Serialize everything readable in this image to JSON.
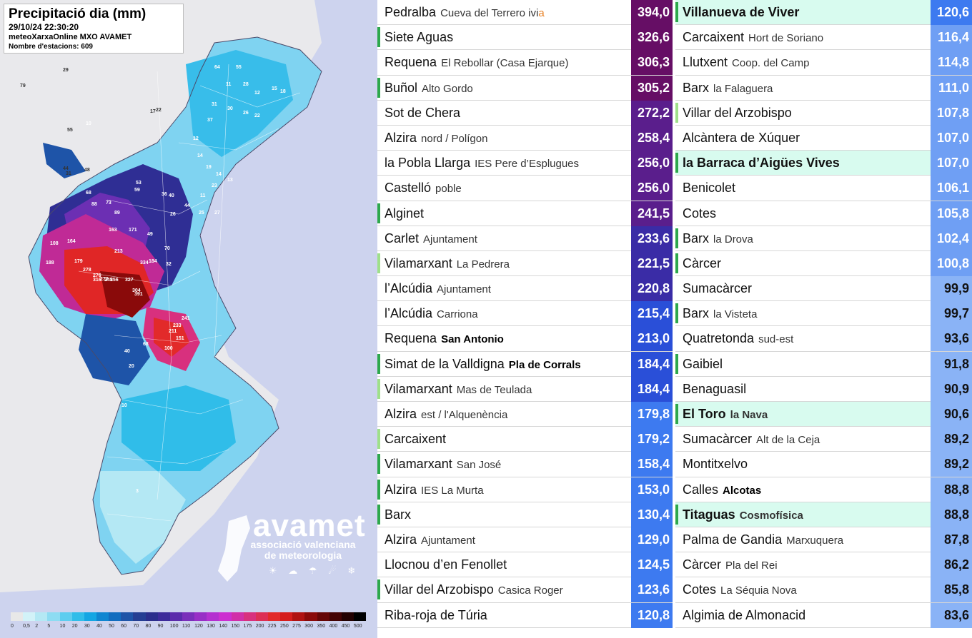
{
  "map": {
    "title": "Precipitació dia (mm)",
    "datetime": "29/10/24 22:30:20",
    "source": "meteoXarxaOnline MXO AVAMET",
    "station_count": "Nombre d'estacions: 609",
    "logo_name": "avamet",
    "logo_sub_1": "associació valenciana",
    "logo_sub_2": "de meteorologia",
    "weather_icons": "☀ ☁ ☂ ☄ ❄",
    "labels_a": [
      "29",
      "79",
      "55",
      "44",
      "31",
      "48",
      "17",
      "22",
      "10",
      "68",
      "88",
      "73",
      "89",
      "163",
      "171",
      "108",
      "164",
      "188",
      "179",
      "278",
      "213",
      "272",
      "327",
      "304",
      "391",
      "276",
      "316",
      "245",
      "256",
      "334",
      "184",
      "241",
      "233",
      "211",
      "151",
      "100",
      "68",
      "40",
      "20",
      "10",
      "3"
    ],
    "labels_b": [
      "53",
      "59",
      "36",
      "40",
      "49",
      "26",
      "70",
      "32",
      "64",
      "55",
      "11",
      "28",
      "12",
      "15",
      "18",
      "26",
      "22",
      "30",
      "31",
      "37",
      "12",
      "14",
      "19",
      "14",
      "13",
      "23",
      "11",
      "44",
      "25",
      "27"
    ],
    "legend_colors": [
      "#e8e8e8",
      "#d2f2f8",
      "#b4e8f4",
      "#8ddcf2",
      "#5dcdef",
      "#30bde9",
      "#14a6e3",
      "#0f86d1",
      "#116dbf",
      "#1e54a8",
      "#253e93",
      "#2b2e8c",
      "#3d2b9a",
      "#5b2bab",
      "#7a2fba",
      "#982fc6",
      "#b430d0",
      "#cc2fd0",
      "#d12fa8",
      "#d8307e",
      "#dd2f55",
      "#e22a2a",
      "#d51d1d",
      "#b01212",
      "#8a0a0a",
      "#650606",
      "#430303",
      "#220101",
      "#000000"
    ],
    "legend_ticks": [
      "0",
      "0,5",
      "2",
      "5",
      "10",
      "20",
      "30",
      "40",
      "50",
      "60",
      "70",
      "80",
      "90",
      "100",
      "110",
      "120",
      "130",
      "140",
      "150",
      "175",
      "200",
      "225",
      "250",
      "275",
      "300",
      "350",
      "400",
      "450",
      "500"
    ]
  },
  "colors": {
    "dark_purple": "#660e65",
    "purple": "#5a1e8c",
    "indigo": "#3a2ca6",
    "blue": "#2a4fd8",
    "mid_blue": "#3d7af0",
    "light_blue": "#6f9ff4",
    "green_mark": "#2da84c",
    "light_green_mark": "#9fe08a",
    "highlight_row": "#d8fbef",
    "orange_text": "#e8842a"
  },
  "stations_left": [
    {
      "name": "Pedralba",
      "loc": "Cueva del Terrero ivi",
      "loc_orange": "a",
      "value": "394,0",
      "color": "#660e65",
      "mark": ""
    },
    {
      "name": "Siete Aguas",
      "loc": "",
      "value": "326,6",
      "color": "#660e65",
      "mark": "#2da84c"
    },
    {
      "name": "Requena",
      "loc": "El Rebollar (Casa Ejarque)",
      "value": "306,3",
      "color": "#660e65",
      "mark": ""
    },
    {
      "name": "Buñol",
      "loc": "Alto Gordo",
      "value": "305,2",
      "color": "#660e65",
      "mark": "#2da84c"
    },
    {
      "name": "Sot de Chera",
      "loc": "",
      "value": "272,2",
      "color": "#5a1e8c",
      "mark": ""
    },
    {
      "name": "Alzira",
      "loc": "nord / Polígon",
      "value": "258,4",
      "color": "#5a1e8c",
      "mark": ""
    },
    {
      "name": "la Pobla Llarga",
      "loc": "IES Pere d’Esplugues",
      "value": "256,0",
      "color": "#5a1e8c",
      "mark": ""
    },
    {
      "name": "Castelló",
      "loc": "poble",
      "value": "256,0",
      "color": "#5a1e8c",
      "mark": ""
    },
    {
      "name": "Alginet",
      "loc": "",
      "value": "241,5",
      "color": "#5a1e8c",
      "mark": "#2da84c"
    },
    {
      "name": "Carlet",
      "loc": "Ajuntament",
      "value": "233,6",
      "color": "#3a2ca6",
      "mark": ""
    },
    {
      "name": "Vilamarxant",
      "loc": "La Pedrera",
      "value": "221,5",
      "color": "#3a2ca6",
      "mark": "#9fe08a"
    },
    {
      "name": "l’Alcúdia",
      "loc": "Ajuntament",
      "value": "220,8",
      "color": "#3a2ca6",
      "mark": ""
    },
    {
      "name": "l’Alcúdia",
      "loc": "Carriona",
      "value": "215,4",
      "color": "#2a4fd8",
      "mark": ""
    },
    {
      "name": "Requena",
      "loc": "San Antonio",
      "loc_bold": true,
      "value": "213,0",
      "color": "#2a4fd8",
      "mark": ""
    },
    {
      "name": "Simat de la Valldigna",
      "loc": "Pla de Corrals",
      "loc_bold": true,
      "value": "184,4",
      "color": "#2a4fd8",
      "mark": "#2da84c"
    },
    {
      "name": "Vilamarxant",
      "loc": "Mas de Teulada",
      "value": "184,4",
      "color": "#2a4fd8",
      "mark": "#9fe08a"
    },
    {
      "name": "Alzira",
      "loc": "est / l'Alquenència",
      "value": "179,8",
      "color": "#3d7af0",
      "mark": ""
    },
    {
      "name": "Carcaixent",
      "loc": "",
      "value": "179,2",
      "color": "#3d7af0",
      "mark": "#9fe08a"
    },
    {
      "name": "Vilamarxant",
      "loc": "San José",
      "value": "158,4",
      "color": "#3d7af0",
      "mark": "#2da84c"
    },
    {
      "name": "Alzira",
      "loc": "IES La Murta",
      "value": "153,0",
      "color": "#3d7af0",
      "mark": "#2da84c"
    },
    {
      "name": "Barx",
      "loc": "",
      "value": "130,4",
      "color": "#3d7af0",
      "mark": "#2da84c"
    },
    {
      "name": "Alzira",
      "loc": "Ajuntament",
      "value": "129,0",
      "color": "#3d7af0",
      "mark": ""
    },
    {
      "name": "Llocnou d’en Fenollet",
      "loc": "",
      "value": "124,5",
      "color": "#3d7af0",
      "mark": ""
    },
    {
      "name": "Villar del Arzobispo",
      "loc": "Casica Roger",
      "value": "123,6",
      "color": "#3d7af0",
      "mark": "#2da84c"
    },
    {
      "name": "Riba-roja de Túria",
      "loc": "",
      "value": "120,8",
      "color": "#3d7af0",
      "mark": ""
    }
  ],
  "stations_right": [
    {
      "name": "Villanueva de Viver",
      "loc": "",
      "value": "120,6",
      "color": "#3d7af0",
      "mark": "#2da84c",
      "hl": true
    },
    {
      "name": "Carcaixent",
      "loc": "Hort de Soriano",
      "value": "116,4",
      "color": "#6f9ff4",
      "mark": ""
    },
    {
      "name": "Llutxent",
      "loc": "Coop. del Camp",
      "value": "114,8",
      "color": "#6f9ff4",
      "mark": ""
    },
    {
      "name": "Barx",
      "loc": "la Falaguera",
      "value": "111,0",
      "color": "#6f9ff4",
      "mark": ""
    },
    {
      "name": "Villar del Arzobispo",
      "loc": "",
      "value": "107,8",
      "color": "#6f9ff4",
      "mark": "#9fe08a"
    },
    {
      "name": "Alcàntera de Xúquer",
      "loc": "",
      "value": "107,0",
      "color": "#6f9ff4",
      "mark": ""
    },
    {
      "name": "la Barraca d’Aigües Vives",
      "loc": "",
      "value": "107,0",
      "color": "#6f9ff4",
      "mark": "#2da84c",
      "hl": true
    },
    {
      "name": "Benicolet",
      "loc": "",
      "value": "106,1",
      "color": "#6f9ff4",
      "mark": ""
    },
    {
      "name": "Cotes",
      "loc": "",
      "value": "105,8",
      "color": "#6f9ff4",
      "mark": ""
    },
    {
      "name": "Barx",
      "loc": "la Drova",
      "value": "102,4",
      "color": "#6f9ff4",
      "mark": "#2da84c"
    },
    {
      "name": "Càrcer",
      "loc": "",
      "value": "100,8",
      "color": "#6f9ff4",
      "mark": "#2da84c"
    },
    {
      "name": "Sumacàrcer",
      "loc": "",
      "value": "99,9",
      "color": "#8ab3f6",
      "mark": "",
      "dark": true
    },
    {
      "name": "Barx",
      "loc": "la Visteta",
      "value": "99,7",
      "color": "#8ab3f6",
      "mark": "#2da84c",
      "dark": true
    },
    {
      "name": "Quatretonda",
      "loc": "sud-est",
      "value": "93,6",
      "color": "#8ab3f6",
      "mark": "",
      "dark": true
    },
    {
      "name": "Gaibiel",
      "loc": "",
      "value": "91,8",
      "color": "#8ab3f6",
      "mark": "#2da84c",
      "dark": true
    },
    {
      "name": "Benaguasil",
      "loc": "",
      "value": "90,9",
      "color": "#8ab3f6",
      "mark": "",
      "dark": true
    },
    {
      "name": "El Toro",
      "loc": "la Nava",
      "value": "90,6",
      "color": "#8ab3f6",
      "mark": "#2da84c",
      "dark": true,
      "hl": true
    },
    {
      "name": "Sumacàrcer",
      "loc": "Alt de la Ceja",
      "value": "89,2",
      "color": "#8ab3f6",
      "mark": "",
      "dark": true
    },
    {
      "name": "Montitxelvo",
      "loc": "",
      "value": "89,2",
      "color": "#8ab3f6",
      "mark": "",
      "dark": true
    },
    {
      "name": "Calles",
      "loc": "Alcotas",
      "loc_bold": true,
      "value": "88,8",
      "color": "#8ab3f6",
      "mark": "",
      "dark": true
    },
    {
      "name": "Titaguas",
      "loc": "Cosmofísica",
      "value": "88,8",
      "color": "#8ab3f6",
      "mark": "#2da84c",
      "dark": true,
      "hl": true
    },
    {
      "name": "Palma de Gandia",
      "loc": "Marxuquera",
      "value": "87,8",
      "color": "#8ab3f6",
      "mark": "",
      "dark": true
    },
    {
      "name": "Càrcer",
      "loc": "Pla del Rei",
      "value": "86,2",
      "color": "#8ab3f6",
      "mark": "",
      "dark": true
    },
    {
      "name": "Cotes",
      "loc": "La Séquia Nova",
      "value": "85,8",
      "color": "#8ab3f6",
      "mark": "",
      "dark": true
    },
    {
      "name": "Algimia de Almonacid",
      "loc": "",
      "value": "83,6",
      "color": "#8ab3f6",
      "mark": "",
      "dark": true
    }
  ]
}
